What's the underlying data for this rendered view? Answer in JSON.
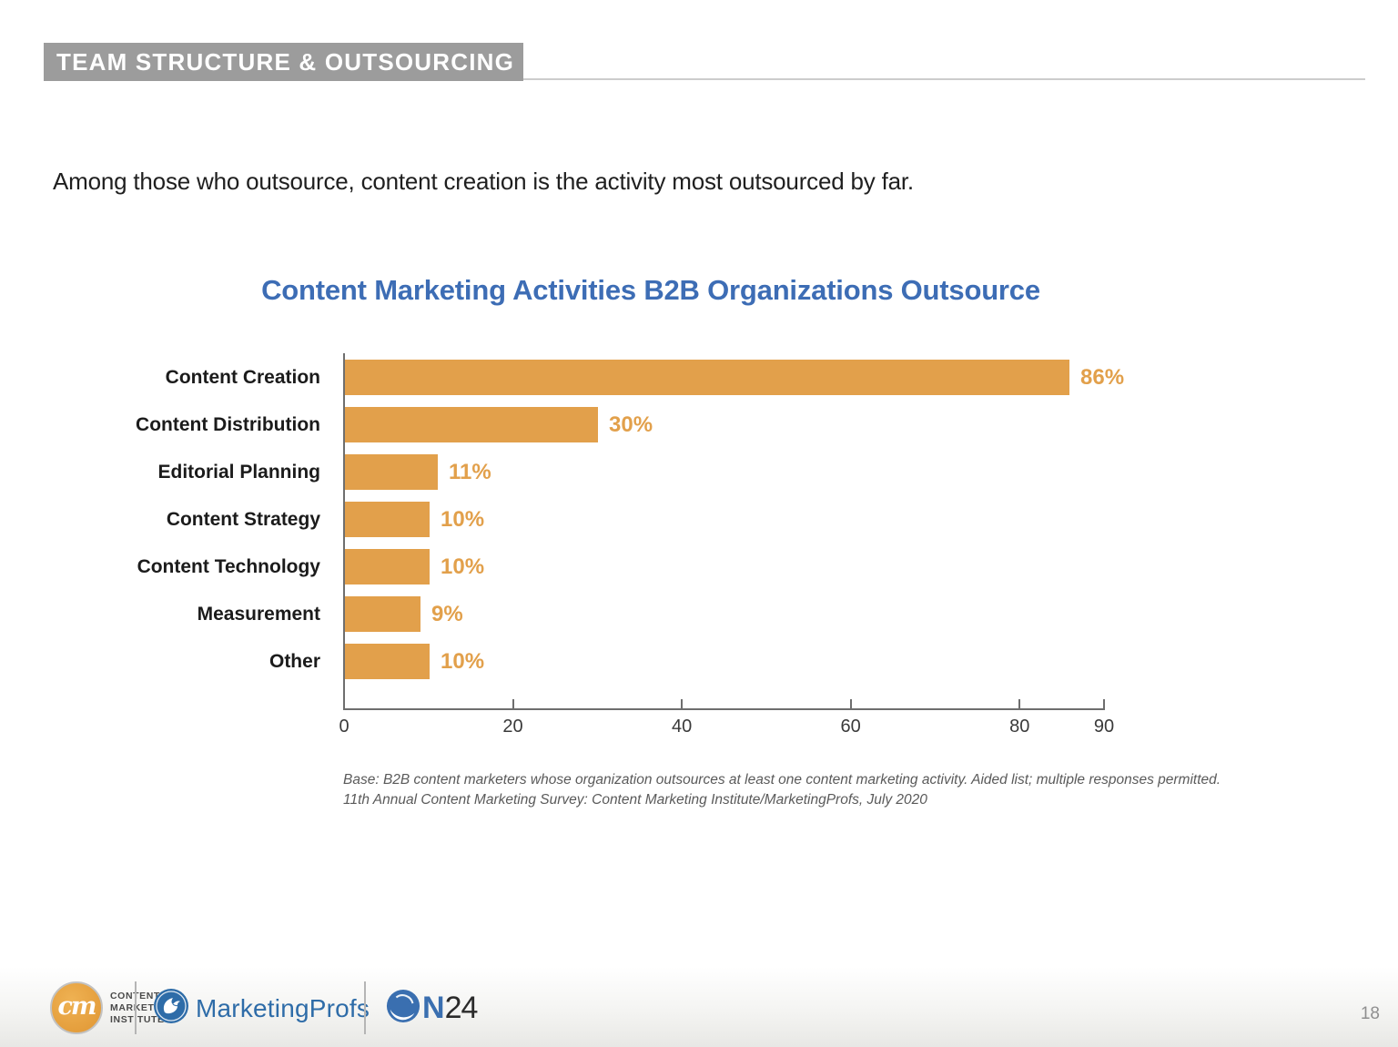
{
  "header": {
    "tag": "TEAM STRUCTURE & OUTSOURCING"
  },
  "intro": "Among those who outsource, content creation is the activity most outsourced by far.",
  "chart_data": {
    "type": "bar",
    "orientation": "horizontal",
    "title": "Content Marketing Activities B2B Organizations Outsource",
    "categories": [
      "Content Creation",
      "Content Distribution",
      "Editorial Planning",
      "Content Strategy",
      "Content Technology",
      "Measurement",
      "Other"
    ],
    "values": [
      86,
      30,
      11,
      10,
      10,
      9,
      10
    ],
    "value_labels": [
      "86%",
      "30%",
      "11%",
      "10%",
      "10%",
      "9%",
      "10%"
    ],
    "xlim": [
      0,
      90
    ],
    "x_ticks": [
      0,
      20,
      40,
      60,
      80,
      90
    ],
    "grid": false,
    "legend": "none",
    "bar_color": "#E2A04B",
    "title_color": "#3D6DB5"
  },
  "footnote": {
    "line1": "Base: B2B content marketers whose organization outsources at least one content marketing activity. Aided list; multiple responses permitted.",
    "line2": "11th Annual Content Marketing Survey: Content Marketing Institute/MarketingProfs, July 2020"
  },
  "footer": {
    "cmi": {
      "monogram": "cm",
      "line1": "CONTENT",
      "line2": "MARKETING",
      "line3": "INSTITUTE™"
    },
    "marketingprofs": {
      "label": "MarketingProfs"
    },
    "on24": {
      "n": "N",
      "num": "24"
    }
  },
  "page": {
    "number": "18"
  },
  "colors": {
    "bar_orange": "#E2A04B",
    "title_blue": "#3D6DB5",
    "header_gray": "#9C9C9C",
    "mp_blue": "#2E6CA8",
    "on24_blue": "#3A6FB0",
    "cmi_orange": "#E8A33D",
    "axis_gray": "#6e6e6e"
  }
}
